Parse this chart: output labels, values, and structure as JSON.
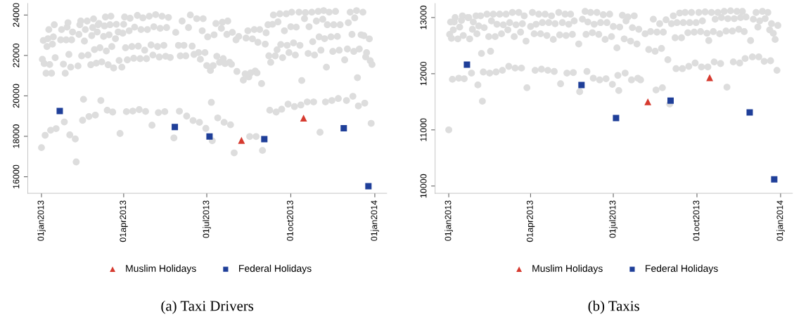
{
  "chart_data": [
    {
      "type": "scatter",
      "title": "(a) Taxi Drivers",
      "xlim": [
        "2012-12-17",
        "2014-01-14"
      ],
      "ylim": [
        15180,
        24570
      ],
      "xticks": [
        {
          "value": "2013-01-01",
          "label": "01jan2013"
        },
        {
          "value": "2013-04-01",
          "label": "01apr2013"
        },
        {
          "value": "2013-07-01",
          "label": "01jul2013"
        },
        {
          "value": "2013-10-01",
          "label": "01oct2013"
        },
        {
          "value": "2014-01-01",
          "label": "01jan2014"
        }
      ],
      "yticks": [
        16000,
        18000,
        20000,
        22000,
        24000
      ],
      "grid": false,
      "legend": "bottom",
      "series": [
        {
          "marker": "circle",
          "color": "#dddddd",
          "x": [
            "2013-01-01",
            "2013-01-02",
            "2013-01-03",
            "2013-01-04",
            "2013-01-05",
            "2013-01-06",
            "2013-01-07",
            "2013-01-08",
            "2013-01-09",
            "2013-01-10",
            "2013-01-11",
            "2013-01-12",
            "2013-01-13",
            "2013-01-14",
            "2013-01-15",
            "2013-01-16",
            "2013-01-17",
            "2013-01-22",
            "2013-01-23",
            "2013-01-25",
            "2013-01-26",
            "2013-01-27",
            "2013-01-28",
            "2013-01-29",
            "2013-01-30",
            "2013-01-31",
            "2013-02-01",
            "2013-02-02",
            "2013-02-03",
            "2013-02-04",
            "2013-02-07",
            "2013-02-08",
            "2013-02-10",
            "2013-02-11",
            "2013-02-12",
            "2013-02-13",
            "2013-02-14",
            "2013-02-15",
            "2013-02-16",
            "2013-02-17",
            "2013-02-18",
            "2013-02-20",
            "2013-02-21",
            "2013-02-22",
            "2013-02-24",
            "2013-02-25",
            "2013-02-26",
            "2013-02-27",
            "2013-02-28",
            "2013-03-01",
            "2013-03-02",
            "2013-03-03",
            "2013-03-04",
            "2013-03-05",
            "2013-03-06",
            "2013-03-07",
            "2013-03-08",
            "2013-03-10",
            "2013-03-11",
            "2013-03-12",
            "2013-03-13",
            "2013-03-14",
            "2013-03-15",
            "2013-03-16",
            "2013-03-17",
            "2013-03-18",
            "2013-03-19",
            "2013-03-20",
            "2013-03-21",
            "2013-03-23",
            "2013-03-24",
            "2013-03-26",
            "2013-03-27",
            "2013-03-28",
            "2013-03-30",
            "2013-03-31",
            "2013-04-01",
            "2013-04-02",
            "2013-04-03",
            "2013-04-04",
            "2013-04-05",
            "2013-04-07",
            "2013-04-08",
            "2013-04-10",
            "2013-04-11",
            "2013-04-12",
            "2013-04-13",
            "2013-04-16",
            "2013-04-17",
            "2013-04-18",
            "2013-04-19",
            "2013-04-20",
            "2013-04-22",
            "2013-04-24",
            "2013-04-25",
            "2013-04-26",
            "2013-04-27",
            "2013-04-29",
            "2013-05-01",
            "2013-05-02",
            "2013-05-03",
            "2013-05-04",
            "2013-05-06",
            "2013-05-08",
            "2013-05-09",
            "2013-05-10",
            "2013-05-11",
            "2013-05-13",
            "2013-05-15",
            "2013-05-16",
            "2013-05-17",
            "2013-05-18",
            "2013-05-20",
            "2013-05-22",
            "2013-05-26",
            "2013-05-28",
            "2013-05-31",
            "2013-06-01",
            "2013-06-02",
            "2013-06-04",
            "2013-06-06",
            "2013-06-08",
            "2013-06-09",
            "2013-06-11",
            "2013-06-13",
            "2013-06-15",
            "2013-06-16",
            "2013-06-17",
            "2013-06-20",
            "2013-06-22",
            "2013-06-23",
            "2013-06-24",
            "2013-06-26",
            "2013-06-27",
            "2013-06-29",
            "2013-06-30",
            "2013-07-01",
            "2013-07-02",
            "2013-07-05",
            "2013-07-06",
            "2013-07-07",
            "2013-07-08",
            "2013-07-09",
            "2013-07-11",
            "2013-07-12",
            "2013-07-13",
            "2013-07-15",
            "2013-07-17",
            "2013-07-18",
            "2013-07-19",
            "2013-07-20",
            "2013-07-21",
            "2013-07-23",
            "2013-07-24",
            "2013-07-26",
            "2013-07-27",
            "2013-07-28",
            "2013-07-29",
            "2013-07-31",
            "2013-08-02",
            "2013-08-03",
            "2013-08-05",
            "2013-08-10",
            "2013-08-12",
            "2013-08-13",
            "2013-08-15",
            "2013-08-16",
            "2013-08-17",
            "2013-08-18",
            "2013-08-20",
            "2013-08-22",
            "2013-08-23",
            "2013-08-24",
            "2013-08-25",
            "2013-08-26",
            "2013-08-28",
            "2013-08-30",
            "2013-08-31",
            "2013-09-03",
            "2013-09-04",
            "2013-09-06",
            "2013-09-07",
            "2013-09-08",
            "2013-09-09",
            "2013-09-11",
            "2013-09-12",
            "2013-09-14",
            "2013-09-15",
            "2013-09-16",
            "2013-09-17",
            "2013-09-19",
            "2013-09-20",
            "2013-09-21",
            "2013-09-22",
            "2013-09-24",
            "2013-09-26",
            "2013-09-27",
            "2013-09-28",
            "2013-09-29",
            "2013-10-01",
            "2013-10-02",
            "2013-10-04",
            "2013-10-05",
            "2013-10-06",
            "2013-10-07",
            "2013-10-10",
            "2013-10-11",
            "2013-10-12",
            "2013-10-13",
            "2013-10-16",
            "2013-10-17",
            "2013-10-19",
            "2013-10-20",
            "2013-10-21",
            "2013-10-24",
            "2013-10-25",
            "2013-10-26",
            "2013-10-27",
            "2013-10-29",
            "2013-10-31",
            "2013-11-01",
            "2013-11-02",
            "2013-11-03",
            "2013-11-05",
            "2013-11-06",
            "2013-11-07",
            "2013-11-08",
            "2013-11-09",
            "2013-11-10",
            "2013-11-12",
            "2013-11-14",
            "2013-11-15",
            "2013-11-16",
            "2013-11-17",
            "2013-11-19",
            "2013-11-21",
            "2013-11-22",
            "2013-11-23",
            "2013-11-24",
            "2013-11-29",
            "2013-12-01",
            "2013-12-02",
            "2013-12-03",
            "2013-12-05",
            "2013-12-07",
            "2013-12-08",
            "2013-12-09",
            "2013-12-10",
            "2013-12-12",
            "2013-12-13",
            "2013-12-14",
            "2013-12-15",
            "2013-12-17",
            "2013-12-19",
            "2013-12-20",
            "2013-12-21",
            "2013-12-22",
            "2013-12-23",
            "2013-12-26",
            "2013-12-27",
            "2013-12-28",
            "2013-12-29"
          ],
          "values": [
            17440,
            21810,
            22740,
            21600,
            18050,
            21120,
            22440,
            22830,
            23280,
            21550,
            18300,
            21120,
            22560,
            22920,
            23520,
            21890,
            18380,
            22770,
            23280,
            21570,
            18710,
            21120,
            22770,
            23400,
            23620,
            22050,
            18070,
            21420,
            22770,
            23160,
            17870,
            16730,
            21480,
            23040,
            23520,
            23700,
            21980,
            18790,
            19830,
            22710,
            23280,
            23700,
            22020,
            18980,
            21540,
            22980,
            23380,
            23810,
            22290,
            19050,
            21620,
            23160,
            23520,
            23580,
            22380,
            19770,
            21680,
            22940,
            23460,
            23900,
            22220,
            19290,
            21540,
            23020,
            23520,
            23940,
            22440,
            19200,
            21380,
            22830,
            23540,
            23160,
            21750,
            18140,
            21420,
            23100,
            23540,
            23900,
            22380,
            19220,
            21780,
            23220,
            23840,
            22440,
            19250,
            21860,
            23400,
            23980,
            22460,
            19320,
            21840,
            23280,
            23860,
            22260,
            19230,
            21840,
            23280,
            23940,
            22520,
            18550,
            22020,
            23420,
            24020,
            22440,
            19170,
            21920,
            23340,
            23940,
            22500,
            19220,
            21960,
            23380,
            23880,
            21900,
            17920,
            23140,
            22500,
            19240,
            21980,
            23700,
            22500,
            21980,
            19000,
            23380,
            24000,
            22460,
            18780,
            22050,
            23820,
            22140,
            18690,
            21810,
            23220,
            23820,
            22140,
            18390,
            21500,
            22920,
            21260,
            19680,
            17780,
            21500,
            23020,
            23580,
            21960,
            18910,
            21660,
            23340,
            23640,
            21840,
            18690,
            21600,
            23040,
            23700,
            21660,
            18570,
            21560,
            23140,
            17180,
            22770,
            21210,
            22940,
            20780,
            21090,
            22860,
            23220,
            20940,
            17990,
            21140,
            22820,
            23280,
            21230,
            17990,
            21140,
            22650,
            23280,
            20610,
            17300,
            22560,
            23120,
            23520,
            21980,
            19290,
            21660,
            23540,
            24000,
            21980,
            19200,
            22280,
            23660,
            24060,
            22540,
            19340,
            21890,
            23220,
            24060,
            22500,
            19590,
            22140,
            23420,
            24140,
            22620,
            19470,
            22020,
            23400,
            24140,
            22500,
            19550,
            20760,
            23820,
            24120,
            19700,
            22100,
            23420,
            24140,
            22680,
            19700,
            22020,
            23700,
            24180,
            22920,
            18200,
            22260,
            23790,
            24220,
            22830,
            19700,
            21420,
            23520,
            24140,
            22920,
            19770,
            22200,
            23520,
            24180,
            22940,
            19870,
            22260,
            23520,
            21780,
            19770,
            22320,
            23620,
            24140,
            23040,
            19980,
            22200,
            23860,
            24220,
            20900,
            19500,
            22320,
            23020,
            24140,
            22980,
            19640,
            21930,
            22140,
            22820,
            21740,
            18640,
            21550
          ]
        },
        {
          "name": "Muslim Holidays",
          "marker": "triangle",
          "color": "#d63a2f",
          "x": [
            "2013-08-08",
            "2013-10-15"
          ],
          "values": [
            17800,
            18900
          ]
        },
        {
          "name": "Federal Holidays",
          "marker": "square",
          "color": "#1f3f99",
          "x": [
            "2013-01-21",
            "2013-05-27",
            "2013-07-04",
            "2013-09-02",
            "2013-11-28",
            "2013-12-25"
          ],
          "values": [
            19250,
            18460,
            17990,
            17860,
            18400,
            15530
          ]
        }
      ]
    },
    {
      "type": "scatter",
      "title": "(b) Taxis",
      "xlim": [
        "2012-12-17",
        "2014-01-14"
      ],
      "ylim": [
        9870,
        13250
      ],
      "xticks": [
        {
          "value": "2013-01-01",
          "label": "01jan2013"
        },
        {
          "value": "2013-04-01",
          "label": "01apr2013"
        },
        {
          "value": "2013-07-01",
          "label": "01jul2013"
        },
        {
          "value": "2013-10-01",
          "label": "01oct2013"
        },
        {
          "value": "2014-01-01",
          "label": "01jan2014"
        }
      ],
      "yticks": [
        10000,
        11000,
        12000,
        13000
      ],
      "grid": false,
      "legend": "bottom",
      "series": [
        {
          "marker": "circle",
          "color": "#dddddd",
          "x": [
            "2013-01-01",
            "2013-01-02",
            "2013-01-03",
            "2013-01-04",
            "2013-01-05",
            "2013-01-06",
            "2013-01-07",
            "2013-01-08",
            "2013-01-11",
            "2013-01-12",
            "2013-01-13",
            "2013-01-15",
            "2013-01-16",
            "2013-01-17",
            "2013-01-18",
            "2013-01-22",
            "2013-01-23",
            "2013-01-24",
            "2013-01-26",
            "2013-01-27",
            "2013-01-28",
            "2013-01-31",
            "2013-02-01",
            "2013-02-02",
            "2013-02-03",
            "2013-02-05",
            "2013-02-06",
            "2013-02-07",
            "2013-02-08",
            "2013-02-09",
            "2013-02-12",
            "2013-02-14",
            "2013-02-15",
            "2013-02-16",
            "2013-02-17",
            "2013-02-19",
            "2013-02-21",
            "2013-02-22",
            "2013-02-23",
            "2013-02-26",
            "2013-02-28",
            "2013-03-01",
            "2013-03-02",
            "2013-03-05",
            "2013-03-07",
            "2013-03-08",
            "2013-03-09",
            "2013-03-12",
            "2013-03-14",
            "2013-03-15",
            "2013-03-16",
            "2013-03-19",
            "2013-03-21",
            "2013-03-22",
            "2013-03-23",
            "2013-03-25",
            "2013-03-27",
            "2013-03-28",
            "2013-04-01",
            "2013-04-03",
            "2013-04-05",
            "2013-04-06",
            "2013-04-07",
            "2013-04-10",
            "2013-04-12",
            "2013-04-13",
            "2013-04-14",
            "2013-04-17",
            "2013-04-19",
            "2013-04-20",
            "2013-04-21",
            "2013-04-24",
            "2013-04-26",
            "2013-04-27",
            "2013-04-28",
            "2013-05-02",
            "2013-05-03",
            "2013-05-04",
            "2013-05-06",
            "2013-05-09",
            "2013-05-10",
            "2013-05-11",
            "2013-05-13",
            "2013-05-15",
            "2013-05-17",
            "2013-05-18",
            "2013-05-19",
            "2013-05-24",
            "2013-05-25",
            "2013-05-28",
            "2013-05-31",
            "2013-06-01",
            "2013-06-02",
            "2013-06-03",
            "2013-06-06",
            "2013-06-08",
            "2013-06-09",
            "2013-06-10",
            "2013-06-13",
            "2013-06-15",
            "2013-06-16",
            "2013-06-17",
            "2013-06-20",
            "2013-06-22",
            "2013-06-23",
            "2013-06-24",
            "2013-06-27",
            "2013-06-29",
            "2013-06-30",
            "2013-07-01",
            "2013-07-05",
            "2013-07-06",
            "2013-07-07",
            "2013-07-08",
            "2013-07-11",
            "2013-07-13",
            "2013-07-14",
            "2013-07-15",
            "2013-07-17",
            "2013-07-20",
            "2013-07-21",
            "2013-07-22",
            "2013-07-24",
            "2013-07-27",
            "2013-07-28",
            "2013-07-29",
            "2013-07-31",
            "2013-08-05",
            "2013-08-09",
            "2013-08-11",
            "2013-08-14",
            "2013-08-16",
            "2013-08-17",
            "2013-08-18",
            "2013-08-21",
            "2013-08-23",
            "2013-08-24",
            "2013-08-25",
            "2013-08-28",
            "2013-08-30",
            "2013-09-01",
            "2013-09-03",
            "2013-09-05",
            "2013-09-07",
            "2013-09-08",
            "2013-09-09",
            "2013-09-12",
            "2013-09-14",
            "2013-09-15",
            "2013-09-16",
            "2013-09-18",
            "2013-09-21",
            "2013-09-22",
            "2013-09-23",
            "2013-09-25",
            "2013-09-28",
            "2013-09-29",
            "2013-09-30",
            "2013-10-03",
            "2013-10-05",
            "2013-10-06",
            "2013-10-07",
            "2013-10-10",
            "2013-10-12",
            "2013-10-13",
            "2013-10-14",
            "2013-10-17",
            "2013-10-19",
            "2013-10-20",
            "2013-10-21",
            "2013-10-24",
            "2013-10-26",
            "2013-10-27",
            "2013-10-28",
            "2013-10-31",
            "2013-11-02",
            "2013-11-03",
            "2013-11-04",
            "2013-11-07",
            "2013-11-09",
            "2013-11-10",
            "2013-11-11",
            "2013-11-14",
            "2013-11-16",
            "2013-11-17",
            "2013-11-18",
            "2013-11-20",
            "2013-11-22",
            "2013-11-23",
            "2013-11-24",
            "2013-11-29",
            "2013-12-01",
            "2013-12-02",
            "2013-12-05",
            "2013-12-07",
            "2013-12-08",
            "2013-12-09",
            "2013-12-12",
            "2013-12-14",
            "2013-12-15",
            "2013-12-18",
            "2013-12-20",
            "2013-12-21",
            "2013-12-22",
            "2013-12-24",
            "2013-12-26",
            "2013-12-28",
            "2013-12-29"
          ],
          "values": [
            11000,
            12700,
            12920,
            12630,
            11900,
            12780,
            12920,
            13000,
            12620,
            11920,
            12830,
            12950,
            13030,
            12680,
            11910,
            13000,
            13000,
            12620,
            12010,
            12790,
            12920,
            13030,
            12710,
            11800,
            12850,
            13030,
            12360,
            11510,
            12030,
            12820,
            13060,
            12660,
            12010,
            12400,
            12940,
            13060,
            12660,
            12030,
            12880,
            13060,
            12710,
            12060,
            12870,
            13060,
            12780,
            12130,
            12910,
            13090,
            12660,
            12100,
            12870,
            13090,
            12740,
            12100,
            12890,
            13030,
            12580,
            11750,
            12840,
            13090,
            12710,
            12060,
            12880,
            13060,
            12710,
            12080,
            12910,
            13060,
            12680,
            12060,
            12910,
            13030,
            12610,
            12040,
            12890,
            13090,
            12690,
            11820,
            12910,
            13060,
            12680,
            12010,
            12880,
            13060,
            12700,
            12020,
            12940,
            12530,
            11680,
            12970,
            13110,
            12700,
            12040,
            12920,
            13090,
            12730,
            11920,
            12880,
            13090,
            12700,
            11890,
            12910,
            13050,
            12610,
            11910,
            12910,
            13060,
            12660,
            11810,
            12840,
            12460,
            11970,
            11700,
            12830,
            13040,
            12620,
            12010,
            12940,
            13010,
            12580,
            11890,
            12820,
            13030,
            12530,
            11920,
            12790,
            11890,
            12710,
            12430,
            12750,
            12970,
            12400,
            11710,
            12740,
            12890,
            12450,
            11750,
            12740,
            12960,
            12250,
            11460,
            12890,
            13030,
            12640,
            12090,
            12910,
            13080,
            12640,
            12090,
            12910,
            13090,
            12730,
            12130,
            12910,
            13090,
            12740,
            12190,
            12910,
            13090,
            12750,
            12120,
            12940,
            13100,
            12720,
            12120,
            12590,
            13090,
            12750,
            12210,
            12970,
            13090,
            12710,
            12180,
            13000,
            13110,
            12760,
            11760,
            12980,
            13120,
            12760,
            12210,
            12980,
            13110,
            12790,
            12190,
            13000,
            13110,
            12750,
            12270,
            13010,
            12590,
            12300,
            12970,
            13090,
            12830,
            12300,
            12940,
            13110,
            12220,
            12980,
            13090,
            12780,
            12230,
            12890,
            12720,
            12610,
            12060,
            12860
          ]
        },
        {
          "name": "Muslim Holidays",
          "marker": "triangle",
          "color": "#d63a2f",
          "x": [
            "2013-08-08",
            "2013-10-15"
          ],
          "values": [
            11500,
            11930
          ]
        },
        {
          "name": "Federal Holidays",
          "marker": "square",
          "color": "#1f3f99",
          "x": [
            "2013-01-21",
            "2013-05-27",
            "2013-07-04",
            "2013-09-02",
            "2013-11-28",
            "2013-12-25"
          ],
          "values": [
            12160,
            11800,
            11210,
            11520,
            11310,
            10120
          ]
        }
      ]
    }
  ]
}
